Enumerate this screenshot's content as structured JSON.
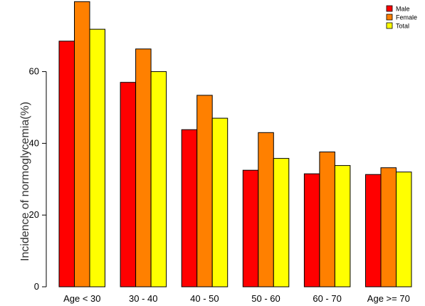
{
  "chart_data": {
    "type": "bar",
    "title": "",
    "xlabel": "",
    "ylabel": "Incidence of normoglycemia(%)",
    "ylim": [
      0,
      80
    ],
    "yticks": [
      0,
      20,
      40,
      60
    ],
    "categories": [
      "Age < 30",
      "30 - 40",
      "40 - 50",
      "50 - 60",
      "60 - 70",
      "Age >= 70"
    ],
    "series": [
      {
        "name": "Male",
        "color": "#ff0000",
        "values": [
          68.5,
          57.0,
          43.8,
          32.5,
          31.5,
          31.3
        ]
      },
      {
        "name": "Female",
        "color": "#ff8000",
        "values": [
          79.5,
          66.3,
          53.4,
          43.0,
          37.6,
          33.2
        ]
      },
      {
        "name": "Total",
        "color": "#ffff00",
        "values": [
          71.8,
          60.0,
          47.0,
          35.8,
          33.8,
          32.0
        ]
      }
    ],
    "legend_position": "top-right",
    "grid": false
  }
}
